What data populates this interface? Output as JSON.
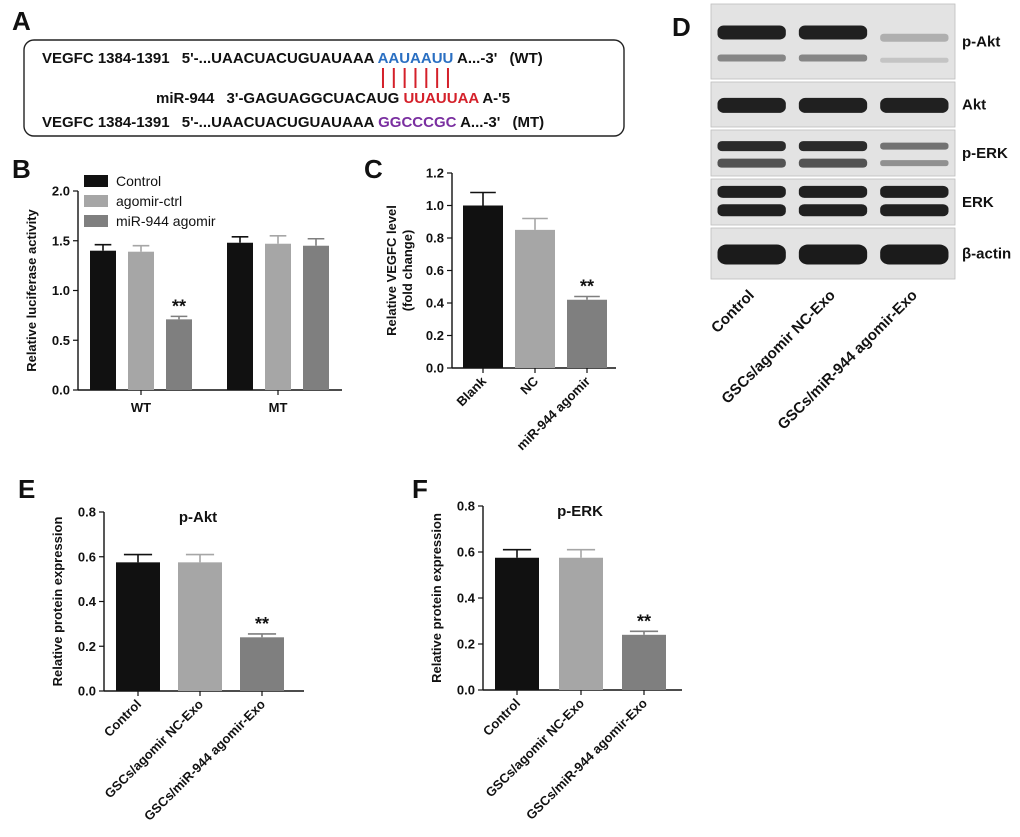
{
  "panel_labels": {
    "A": "A",
    "B": "B",
    "C": "C",
    "D": "D",
    "E": "E",
    "F": "F"
  },
  "sequences": {
    "wt": {
      "name": "VEGFC 1384-1391",
      "prefix": "5'-...UAACUACUGUAUAAA",
      "site": "AAUAAUU",
      "suffix": "A...-3'",
      "tag": "(WT)",
      "site_color": "#2a6fc2"
    },
    "mir": {
      "name": "miR-944",
      "prefix": "3'-GAGUAGGCUACAUG",
      "site": "UUAUUAA",
      "suffix": "A-'5",
      "site_color": "#d4202a"
    },
    "mt": {
      "name": "VEGFC 1384-1391",
      "prefix": "5'-...UAACUACUGUAUAAA",
      "site": "GGCCCGC",
      "suffix": "A...-3'",
      "tag": "(MT)",
      "site_color": "#7a2fa0"
    },
    "pair_line_color": "#d4202a"
  },
  "blot": {
    "bands": [
      "p-Akt",
      "Akt",
      "p-ERK",
      "ERK",
      "β-actin"
    ],
    "lanes": [
      "Control",
      "GSCs/agomir NC-Exo",
      "GSCs/miR-944 agomir-Exo"
    ]
  },
  "chart_data": [
    {
      "id": "B",
      "type": "bar",
      "categories": [
        "WT",
        "MT"
      ],
      "series": [
        {
          "name": "Control",
          "values": [
            1.4,
            1.48
          ],
          "errors": [
            0.06,
            0.06
          ],
          "color": "#111111"
        },
        {
          "name": "agomir-ctrl",
          "values": [
            1.39,
            1.47
          ],
          "errors": [
            0.06,
            0.08
          ],
          "color": "#a6a6a6"
        },
        {
          "name": "miR-944 agomir",
          "values": [
            0.71,
            1.45
          ],
          "errors": [
            0.03,
            0.07
          ],
          "color": "#7f7f7f"
        }
      ],
      "annotations": [
        {
          "category": "WT",
          "series": "miR-944 agomir",
          "text": "**"
        }
      ],
      "ylabel": "Relative luciferase activity",
      "ylim": [
        0,
        2.0
      ],
      "yticks": [
        "0.0",
        "0.5",
        "1.0",
        "1.5",
        "2.0"
      ],
      "legend": "top-left"
    },
    {
      "id": "C",
      "type": "bar",
      "categories": [
        "Blank",
        "NC",
        "miR-944 agomir"
      ],
      "values": [
        1.0,
        0.85,
        0.42
      ],
      "errors": [
        0.08,
        0.07,
        0.02
      ],
      "colors": [
        "#111111",
        "#a6a6a6",
        "#7f7f7f"
      ],
      "annotations": [
        {
          "index": 2,
          "text": "**"
        }
      ],
      "ylabel_lines": [
        "Relative VEGFC level",
        "(fold change)"
      ],
      "ylim": [
        0,
        1.2
      ],
      "yticks": [
        "0.0",
        "0.2",
        "0.4",
        "0.6",
        "0.8",
        "1.0",
        "1.2"
      ]
    },
    {
      "id": "E",
      "type": "bar",
      "title": "p-Akt",
      "categories": [
        "Control",
        "GSCs/agomir NC-Exo",
        "GSCs/miR-944 agomir-Exo"
      ],
      "values": [
        0.575,
        0.575,
        0.24
      ],
      "errors": [
        0.035,
        0.035,
        0.015
      ],
      "colors": [
        "#111111",
        "#a6a6a6",
        "#7f7f7f"
      ],
      "annotations": [
        {
          "index": 2,
          "text": "**"
        }
      ],
      "ylabel": "Relative protein expression",
      "ylim": [
        0,
        0.8
      ],
      "yticks": [
        "0.0",
        "0.2",
        "0.4",
        "0.6",
        "0.8"
      ]
    },
    {
      "id": "F",
      "type": "bar",
      "title": "p-ERK",
      "categories": [
        "Control",
        "GSCs/agomir NC-Exo",
        "GSCs/miR-944 agomir-Exo"
      ],
      "values": [
        0.575,
        0.575,
        0.24
      ],
      "errors": [
        0.035,
        0.035,
        0.015
      ],
      "colors": [
        "#111111",
        "#a6a6a6",
        "#7f7f7f"
      ],
      "annotations": [
        {
          "index": 2,
          "text": "**"
        }
      ],
      "ylabel": "Relative protein expression",
      "ylim": [
        0,
        0.8
      ],
      "yticks": [
        "0.0",
        "0.2",
        "0.4",
        "0.6",
        "0.8"
      ]
    }
  ]
}
